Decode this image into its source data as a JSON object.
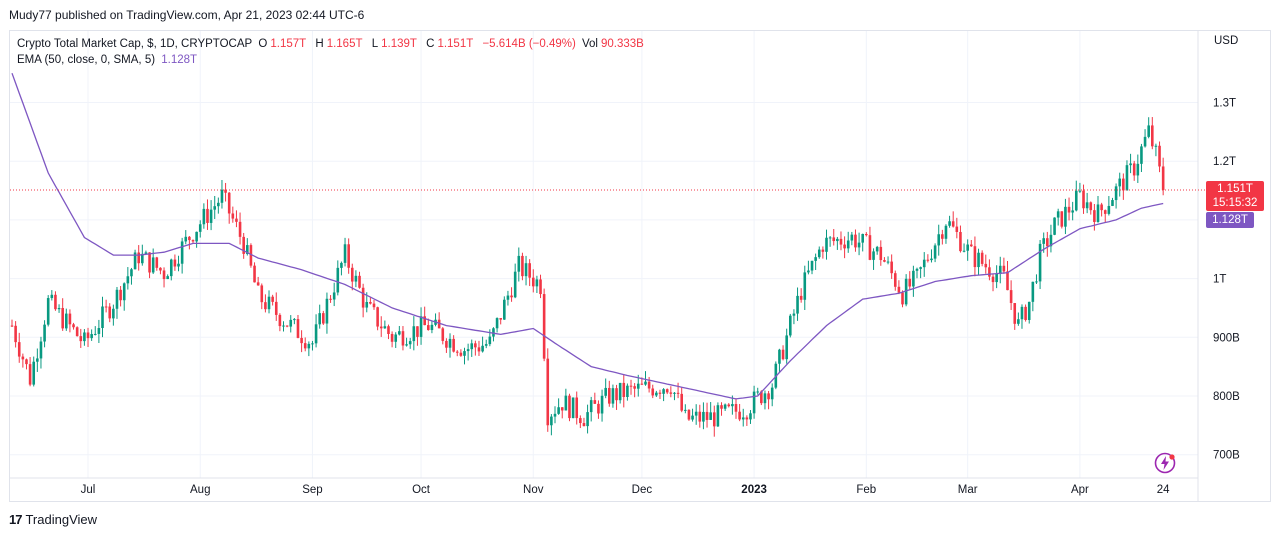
{
  "publish_line": "Mudy77 published on TradingView.com, Apr 21, 2023 02:44 UTC-6",
  "legend": {
    "symbol": "Crypto Total Market Cap, $, 1D, CRYPTOCAP",
    "o_label": "O",
    "o_value": "1.157T",
    "h_label": "H",
    "h_value": "1.165T",
    "l_label": "L",
    "l_value": "1.139T",
    "c_label": "C",
    "c_value": "1.151T",
    "change": "−5.614B (−0.49%)",
    "vol_label": "Vol",
    "vol_value": "90.333B",
    "ema_label": "EMA (50, close, 0, SMA, 5)",
    "ema_value": "1.128T"
  },
  "currency": "USD",
  "price_badge": {
    "price": "1.151T",
    "countdown": "15:15:32"
  },
  "ema_badge": "1.128T",
  "brand": "TradingView",
  "colors": {
    "up": "#089981",
    "down": "#f23645",
    "ema": "#7e57c2",
    "grid": "#f0f3fa"
  },
  "chart_data": {
    "type": "candlestick",
    "title": "Crypto Total Market Cap, $, 1D, CRYPTOCAP",
    "y_unit": "USD",
    "y_range": [
      660,
      1340
    ],
    "y_ticks": [
      {
        "value": 700,
        "label": "700B"
      },
      {
        "value": 800,
        "label": "800B"
      },
      {
        "value": 900,
        "label": "900B"
      },
      {
        "value": 1000,
        "label": "1T"
      },
      {
        "value": 1100,
        "label": "1.1T"
      },
      {
        "value": 1200,
        "label": "1.2T"
      },
      {
        "value": 1300,
        "label": "1.3T"
      }
    ],
    "x_ticks": [
      {
        "label": "Jul",
        "day": 21
      },
      {
        "label": "Aug",
        "day": 52
      },
      {
        "label": "Sep",
        "day": 83
      },
      {
        "label": "Oct",
        "day": 113
      },
      {
        "label": "Nov",
        "day": 144
      },
      {
        "label": "Dec",
        "day": 174
      },
      {
        "label": "2023",
        "day": 205
      },
      {
        "label": "Feb",
        "day": 236
      },
      {
        "label": "Mar",
        "day": 264
      },
      {
        "label": "Apr",
        "day": 295
      },
      {
        "label": "24",
        "day": 318
      }
    ],
    "last_price": 1151,
    "last_ema": 1128,
    "close_anchors": [
      [
        0,
        920
      ],
      [
        5,
        830
      ],
      [
        10,
        960
      ],
      [
        20,
        890
      ],
      [
        28,
        960
      ],
      [
        35,
        1040
      ],
      [
        42,
        1010
      ],
      [
        50,
        1080
      ],
      [
        58,
        1140
      ],
      [
        64,
        1060
      ],
      [
        68,
        970
      ],
      [
        75,
        930
      ],
      [
        83,
        890
      ],
      [
        92,
        1040
      ],
      [
        98,
        950
      ],
      [
        105,
        900
      ],
      [
        115,
        920
      ],
      [
        125,
        880
      ],
      [
        132,
        890
      ],
      [
        140,
        1020
      ],
      [
        146,
        990
      ],
      [
        148,
        770
      ],
      [
        152,
        790
      ],
      [
        158,
        765
      ],
      [
        165,
        800
      ],
      [
        172,
        810
      ],
      [
        182,
        820
      ],
      [
        186,
        760
      ],
      [
        195,
        765
      ],
      [
        203,
        780
      ],
      [
        210,
        820
      ],
      [
        218,
        980
      ],
      [
        224,
        1060
      ],
      [
        232,
        1070
      ],
      [
        240,
        1040
      ],
      [
        246,
        975
      ],
      [
        250,
        1000
      ],
      [
        258,
        1100
      ],
      [
        265,
        1040
      ],
      [
        274,
        1000
      ],
      [
        278,
        920
      ],
      [
        281,
        960
      ],
      [
        284,
        1040
      ],
      [
        288,
        1090
      ],
      [
        295,
        1140
      ],
      [
        300,
        1110
      ],
      [
        305,
        1150
      ],
      [
        310,
        1190
      ],
      [
        314,
        1250
      ],
      [
        316,
        1210
      ],
      [
        318,
        1151
      ]
    ],
    "ema_anchors": [
      [
        0,
        1350
      ],
      [
        10,
        1180
      ],
      [
        20,
        1070
      ],
      [
        28,
        1040
      ],
      [
        35,
        1040
      ],
      [
        42,
        1045
      ],
      [
        50,
        1060
      ],
      [
        60,
        1060
      ],
      [
        68,
        1035
      ],
      [
        80,
        1015
      ],
      [
        92,
        990
      ],
      [
        105,
        950
      ],
      [
        120,
        920
      ],
      [
        135,
        905
      ],
      [
        144,
        915
      ],
      [
        150,
        890
      ],
      [
        160,
        850
      ],
      [
        170,
        835
      ],
      [
        185,
        815
      ],
      [
        200,
        795
      ],
      [
        206,
        800
      ],
      [
        215,
        860
      ],
      [
        225,
        920
      ],
      [
        235,
        965
      ],
      [
        245,
        975
      ],
      [
        255,
        995
      ],
      [
        265,
        1005
      ],
      [
        275,
        1010
      ],
      [
        285,
        1050
      ],
      [
        295,
        1085
      ],
      [
        305,
        1100
      ],
      [
        312,
        1120
      ],
      [
        318,
        1128
      ]
    ]
  }
}
